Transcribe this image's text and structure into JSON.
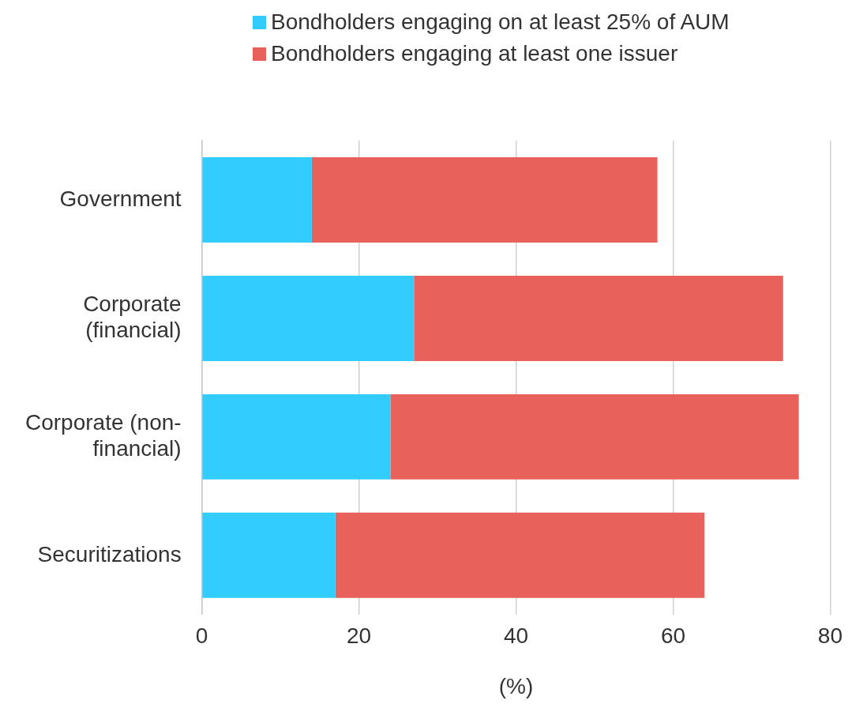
{
  "chart_data": {
    "type": "bar",
    "orientation": "horizontal",
    "stacked": true,
    "xlabel": "(%)",
    "categories": [
      "Government",
      "Corporate (financial)",
      "Corporate (non-financial)",
      "Securitizations"
    ],
    "series": [
      {
        "name": "Bondholders engaging on at least 25% of AUM",
        "color": "#33ccff",
        "values": [
          14,
          27,
          24,
          17
        ]
      },
      {
        "name": "Bondholders engaging at least one issuer",
        "color": "#e8615a",
        "values": [
          44,
          47,
          52,
          47
        ]
      }
    ],
    "xlim": [
      0,
      80
    ],
    "xticks": [
      0,
      20,
      40,
      60,
      80
    ],
    "grid": "x",
    "legend": "top"
  }
}
